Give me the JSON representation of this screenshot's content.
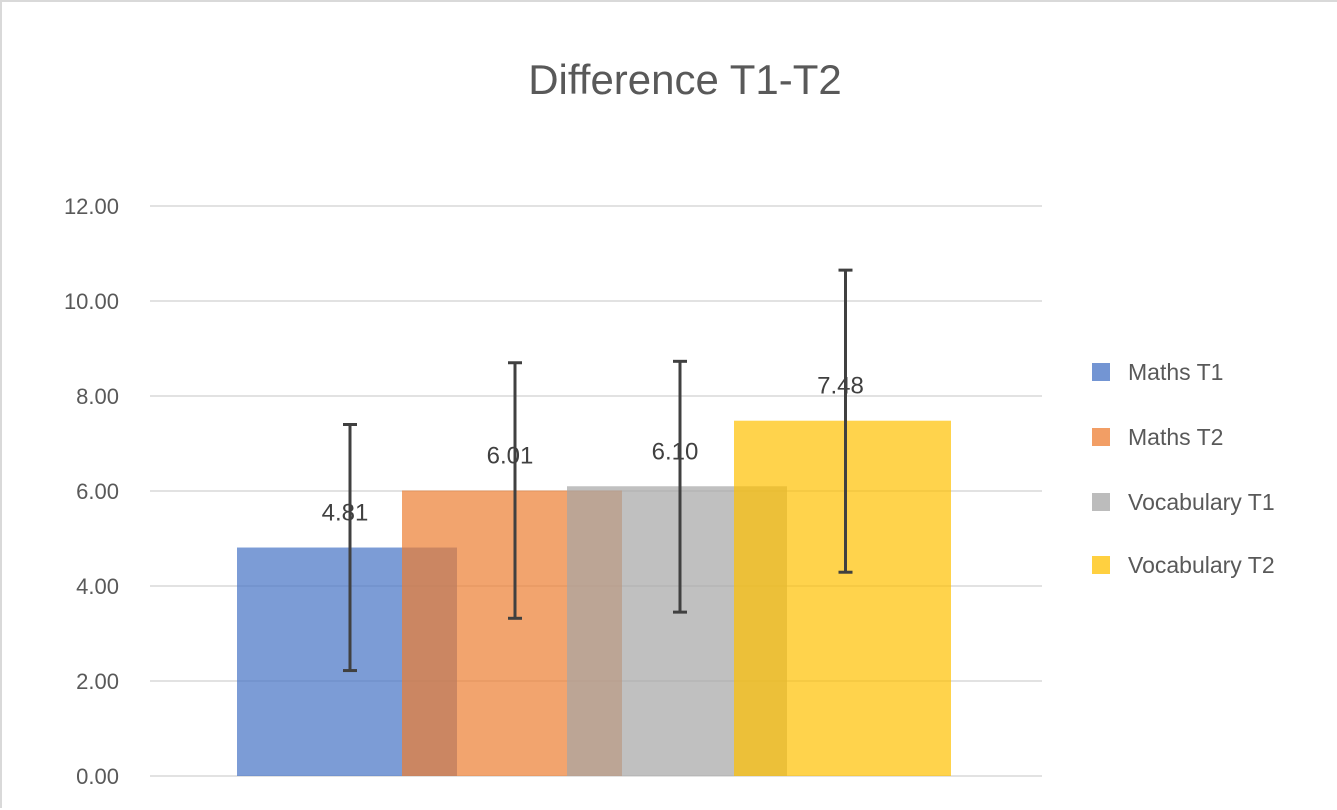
{
  "chart_data": {
    "type": "bar",
    "title": "Difference T1-T2",
    "xlabel": "",
    "ylabel": "",
    "ylim": [
      0,
      12
    ],
    "yticks": [
      "0.00",
      "2.00",
      "4.00",
      "6.00",
      "8.00",
      "10.00",
      "12.00"
    ],
    "grid": true,
    "legend_position": "right",
    "overlapping_bars": true,
    "series": [
      {
        "name": "Maths T1",
        "value": 4.81,
        "label": "4.81",
        "error_low": 2.22,
        "error_high": 7.4,
        "color": "#4472C4"
      },
      {
        "name": "Maths T2",
        "value": 6.01,
        "label": "6.01",
        "error_low": 3.32,
        "error_high": 8.7,
        "color": "#ED7D31"
      },
      {
        "name": "Vocabulary T1",
        "value": 6.1,
        "label": "6.10",
        "error_low": 3.45,
        "error_high": 8.73,
        "color": "#A5A5A5"
      },
      {
        "name": "Vocabulary T2",
        "value": 7.48,
        "label": "7.48",
        "error_low": 4.29,
        "error_high": 10.65,
        "color": "#FFC000"
      }
    ]
  }
}
